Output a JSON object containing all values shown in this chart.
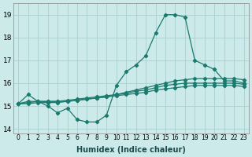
{
  "xlabel": "Humidex (Indice chaleur)",
  "bg_color": "#cdeaea",
  "grid_color": "#aacfcf",
  "line_color": "#1a7a6e",
  "xlim": [
    -0.5,
    23.5
  ],
  "ylim": [
    13.8,
    19.5
  ],
  "yticks": [
    14,
    15,
    16,
    17,
    18,
    19
  ],
  "xticks": [
    0,
    1,
    2,
    3,
    4,
    5,
    6,
    7,
    8,
    9,
    10,
    11,
    12,
    13,
    14,
    15,
    16,
    17,
    18,
    19,
    20,
    21,
    22,
    23
  ],
  "series": {
    "max": [
      15.1,
      15.5,
      15.2,
      15.0,
      14.7,
      14.9,
      14.4,
      14.3,
      14.3,
      14.6,
      15.9,
      16.5,
      16.8,
      17.2,
      18.2,
      19.0,
      19.0,
      18.9,
      17.0,
      16.8,
      16.6,
      16.1,
      16.1,
      16.0
    ],
    "p75": [
      15.1,
      15.2,
      15.2,
      15.2,
      15.2,
      15.2,
      15.25,
      15.3,
      15.35,
      15.4,
      15.5,
      15.6,
      15.7,
      15.8,
      15.9,
      16.0,
      16.1,
      16.15,
      16.2,
      16.2,
      16.2,
      16.2,
      16.2,
      16.15
    ],
    "mean": [
      15.1,
      15.15,
      15.2,
      15.2,
      15.2,
      15.25,
      15.3,
      15.35,
      15.4,
      15.45,
      15.5,
      15.55,
      15.65,
      15.7,
      15.8,
      15.9,
      15.95,
      16.0,
      16.0,
      16.0,
      16.0,
      16.0,
      16.0,
      15.95
    ],
    "p25": [
      15.1,
      15.1,
      15.15,
      15.15,
      15.15,
      15.2,
      15.25,
      15.3,
      15.35,
      15.4,
      15.45,
      15.5,
      15.55,
      15.6,
      15.7,
      15.75,
      15.8,
      15.85,
      15.9,
      15.9,
      15.9,
      15.9,
      15.9,
      15.85
    ]
  }
}
